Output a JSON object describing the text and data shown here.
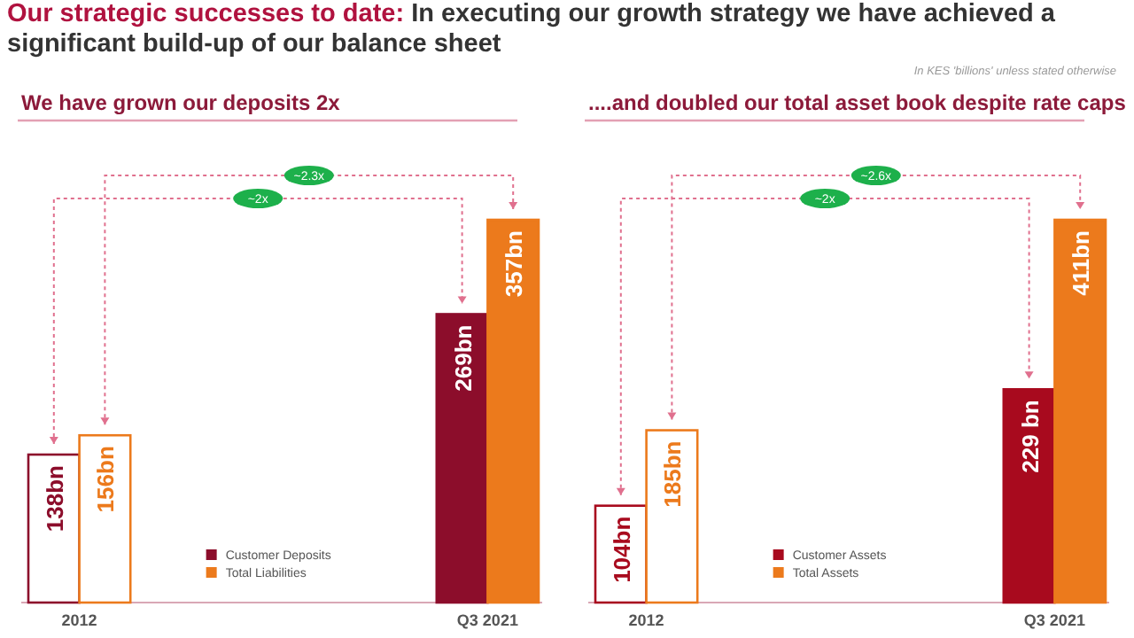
{
  "chart_data": [
    {
      "type": "bar",
      "title": "Our strategic successes to date: In executing our growth strategy we have achieved a significant build-up of our balance sheet",
      "subtitle": "We have grown our deposits 2x",
      "categories": [
        "2012",
        "Q3 2021"
      ],
      "series": [
        {
          "name": "Customer Deposits",
          "color": "#8c0d2b",
          "values": [
            138,
            269
          ],
          "value_labels": [
            "138bn",
            "269bn"
          ]
        },
        {
          "name": "Total Liabilities",
          "color": "#ec7a1c",
          "values": [
            156,
            357
          ],
          "value_labels": [
            "156bn",
            "357bn"
          ]
        }
      ],
      "annotations": [
        "~2x",
        "~2.3x"
      ],
      "legend": "bottom"
    },
    {
      "type": "bar",
      "subtitle": "....and doubled our total asset book despite rate caps",
      "categories": [
        "2012",
        "Q3 2021"
      ],
      "series": [
        {
          "name": "Customer Assets",
          "color": "#a80a1e",
          "values": [
            104,
            229
          ],
          "value_labels": [
            "104bn",
            "229 bn"
          ]
        },
        {
          "name": "Total Assets",
          "color": "#ec7a1c",
          "values": [
            185,
            411
          ],
          "value_labels": [
            "185bn",
            "411bn"
          ]
        }
      ],
      "annotations": [
        "~2x",
        "~2.6x",
        "In KES 'billions' unless stated otherwise"
      ],
      "legend": "bottom"
    }
  ]
}
